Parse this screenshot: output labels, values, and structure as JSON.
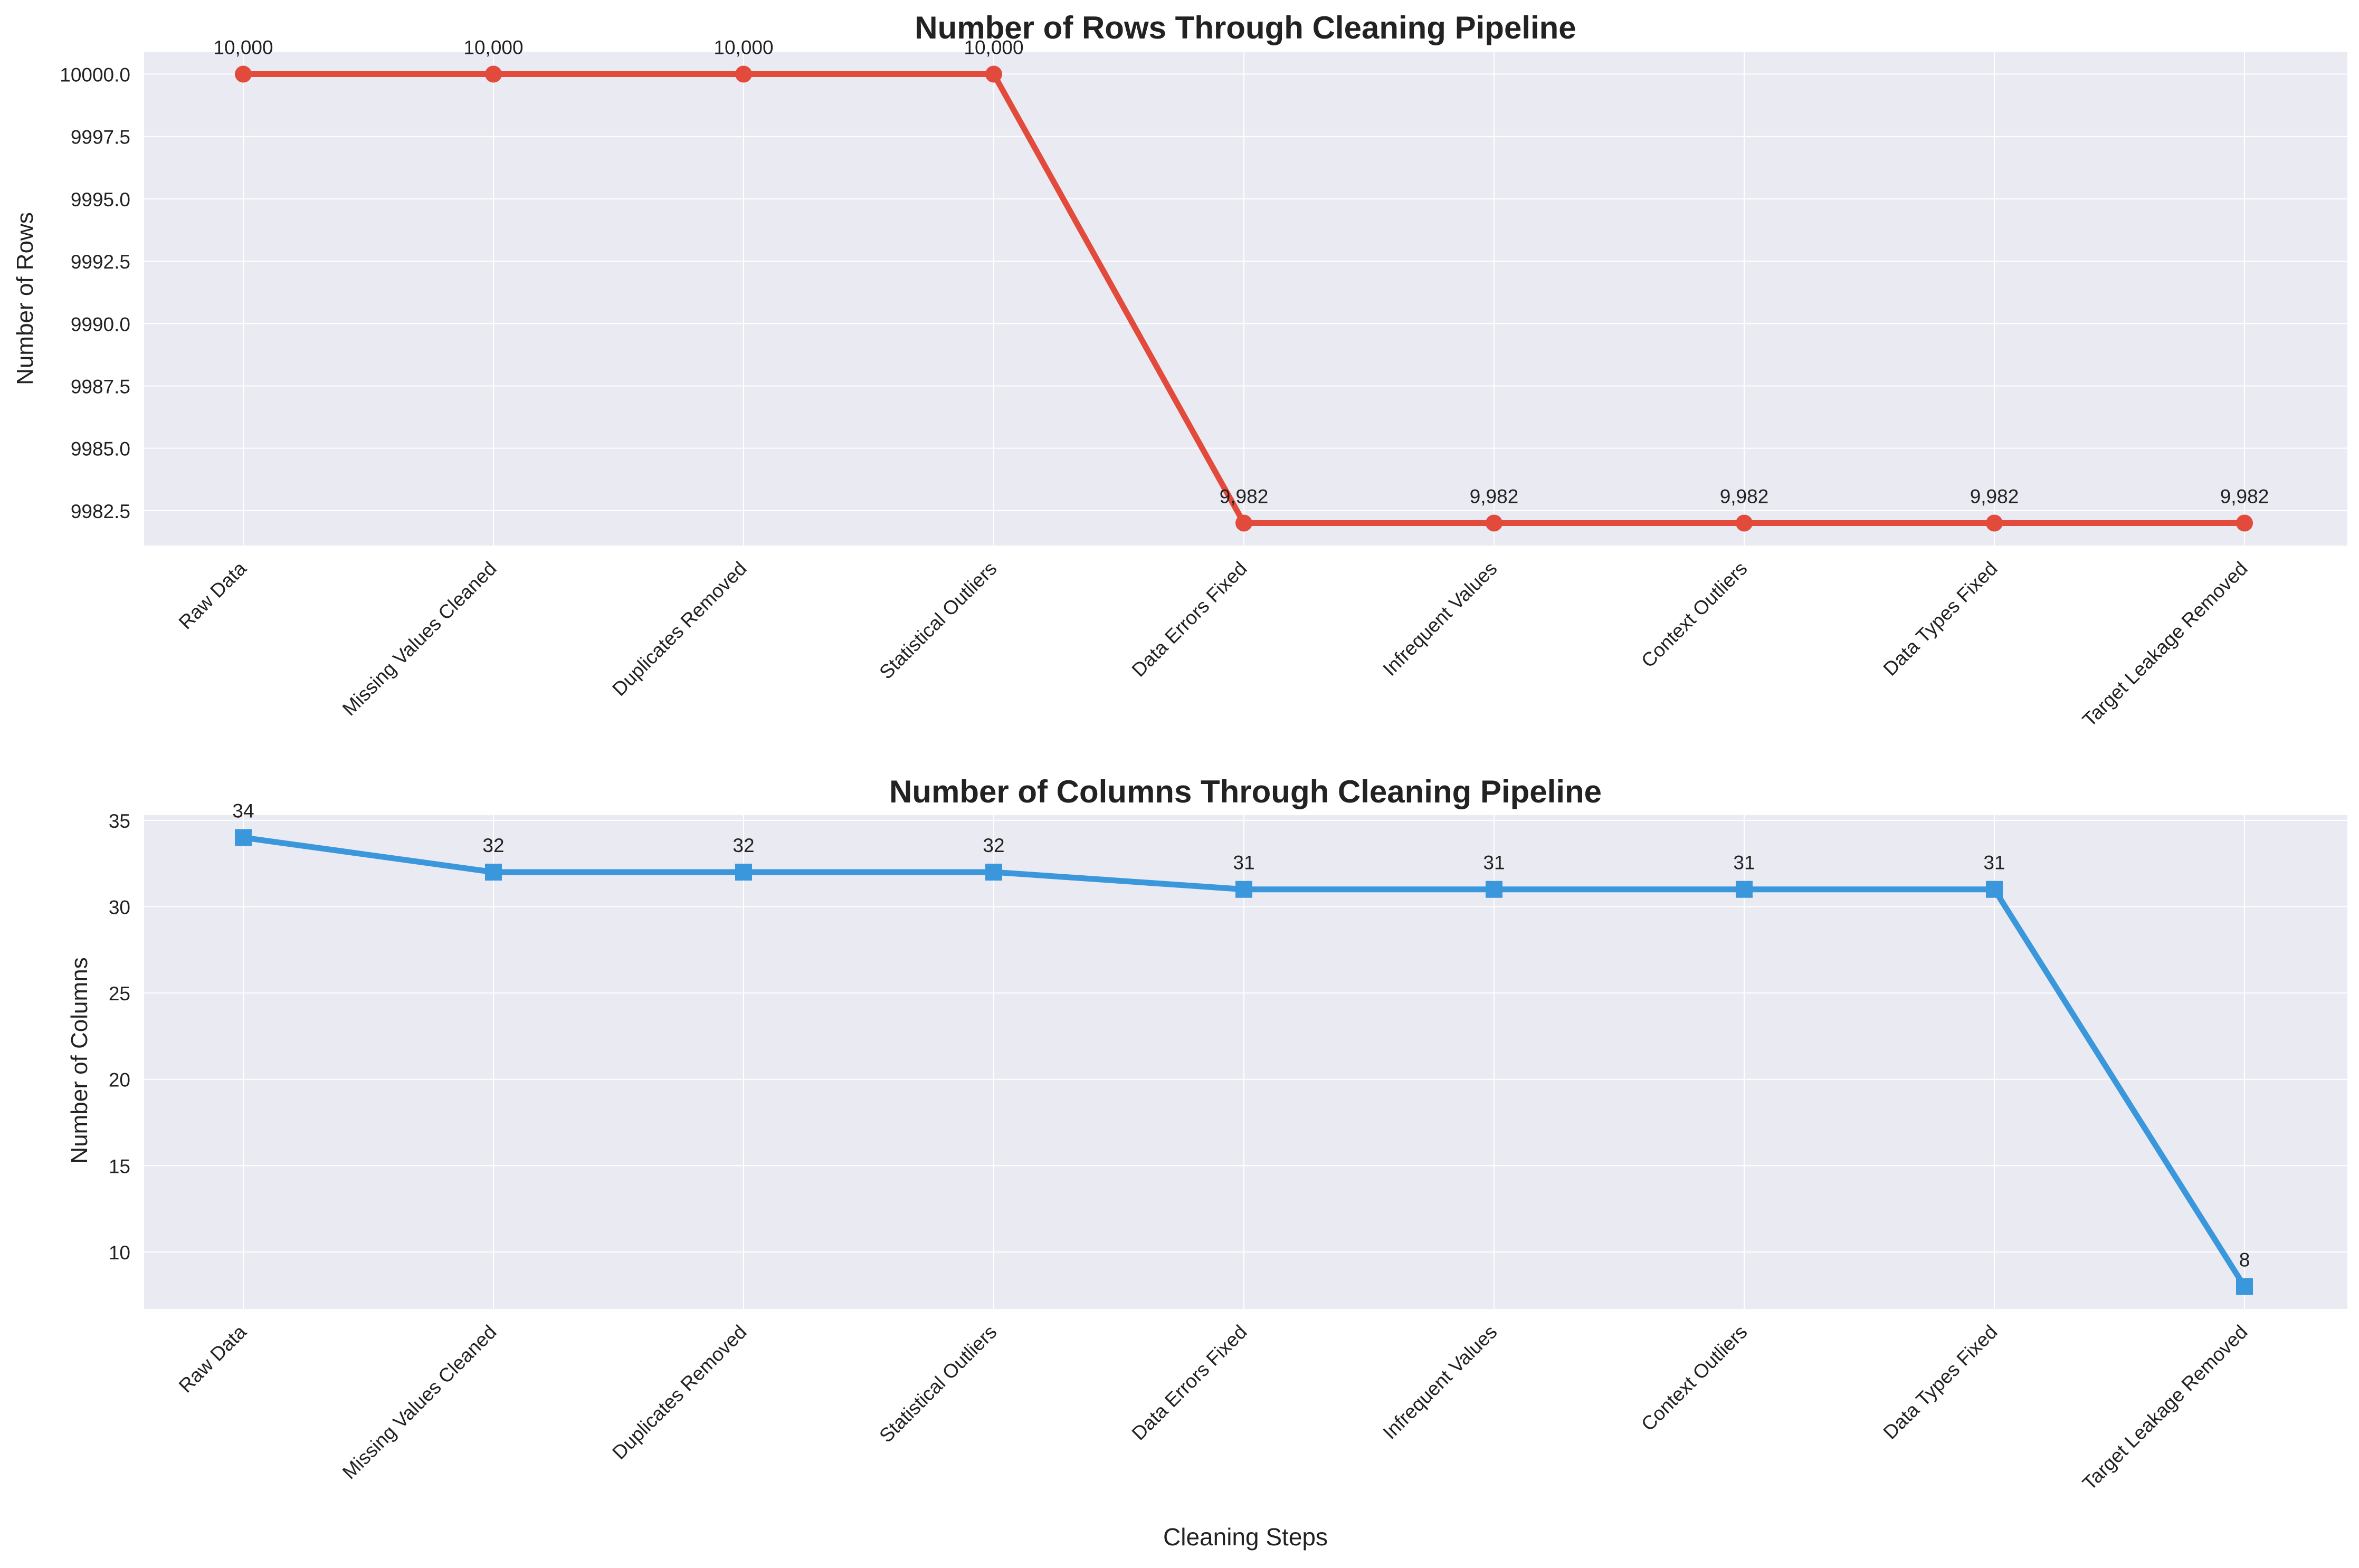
{
  "chart_data": [
    {
      "type": "line",
      "title": "Number of Rows Through Cleaning Pipeline",
      "xlabel": "",
      "ylabel": "Number of Rows",
      "categories": [
        "Raw Data",
        "Missing Values Cleaned",
        "Duplicates Removed",
        "Statistical Outliers",
        "Data Errors Fixed",
        "Infrequent Values",
        "Context Outliers",
        "Data Types Fixed",
        "Target Leakage Removed"
      ],
      "series": [
        {
          "values": [
            10000,
            10000,
            10000,
            10000,
            9982,
            9982,
            9982,
            9982,
            9982
          ],
          "color": "#e24a3b",
          "marker": "circle"
        }
      ],
      "data_labels": [
        "10,000",
        "10,000",
        "10,000",
        "10,000",
        "9,982",
        "9,982",
        "9,982",
        "9,982",
        "9,982"
      ],
      "ylim": [
        9981.1,
        10000.9
      ],
      "yticks": [
        9982.5,
        9985.0,
        9987.5,
        9990.0,
        9992.5,
        9995.0,
        9997.5,
        10000.0
      ],
      "ytick_labels": [
        "9982.5",
        "9985.0",
        "9987.5",
        "9990.0",
        "9992.5",
        "9995.0",
        "9997.5",
        "10000.0"
      ],
      "grid": true,
      "legend": "none"
    },
    {
      "type": "line",
      "title": "Number of Columns Through Cleaning Pipeline",
      "xlabel": "Cleaning Steps",
      "ylabel": "Number of Columns",
      "categories": [
        "Raw Data",
        "Missing Values Cleaned",
        "Duplicates Removed",
        "Statistical Outliers",
        "Data Errors Fixed",
        "Infrequent Values",
        "Context Outliers",
        "Data Types Fixed",
        "Target Leakage Removed"
      ],
      "series": [
        {
          "values": [
            34,
            32,
            32,
            32,
            31,
            31,
            31,
            31,
            8
          ],
          "color": "#3b97db",
          "marker": "square"
        }
      ],
      "data_labels": [
        "34",
        "32",
        "32",
        "32",
        "31",
        "31",
        "31",
        "31",
        "8"
      ],
      "ylim": [
        6.7,
        35.3
      ],
      "yticks": [
        10,
        15,
        20,
        25,
        30,
        35
      ],
      "ytick_labels": [
        "10",
        "15",
        "20",
        "25",
        "30",
        "35"
      ],
      "grid": true,
      "legend": "none"
    }
  ],
  "colors": {
    "plot_background": "#eaeaf2",
    "grid": "#ffffff",
    "rows_line": "#e24a3b",
    "columns_line": "#3b97db"
  }
}
